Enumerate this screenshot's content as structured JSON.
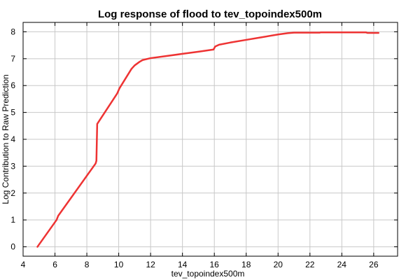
{
  "chart_data": {
    "type": "line",
    "title": "Log response of flood to tev_topoindex500m",
    "xlabel": "tev_topoindex500m",
    "ylabel": "Log Contribution to Raw Prediction",
    "xlim": [
      4,
      27.5
    ],
    "ylim": [
      -0.35,
      8.35
    ],
    "xticks": [
      4,
      6,
      8,
      10,
      12,
      14,
      16,
      18,
      20,
      22,
      24,
      26
    ],
    "yticks": [
      0,
      1,
      2,
      3,
      4,
      5,
      6,
      7,
      8
    ],
    "grid": true,
    "line_color": "#ee3333",
    "series": [
      {
        "x": [
          4.9,
          6.1,
          6.2,
          8.55,
          8.6,
          8.65,
          9.9,
          10.05,
          10.8,
          11.0,
          11.3,
          11.5,
          12.0,
          13.0,
          14.0,
          15.0,
          15.95,
          16.05,
          16.3,
          17.0,
          18.0,
          19.0,
          20.0,
          20.6,
          21.0,
          22.0,
          22.6,
          22.7,
          24.0,
          25.0,
          25.5,
          25.6,
          26.3
        ],
        "y": [
          0.0,
          1.0,
          1.15,
          3.1,
          3.2,
          4.57,
          5.7,
          5.9,
          6.62,
          6.75,
          6.88,
          6.95,
          7.02,
          7.1,
          7.18,
          7.26,
          7.34,
          7.45,
          7.52,
          7.6,
          7.7,
          7.8,
          7.9,
          7.95,
          7.97,
          7.97,
          7.97,
          7.98,
          7.98,
          7.98,
          7.98,
          7.96,
          7.96
        ]
      }
    ]
  }
}
